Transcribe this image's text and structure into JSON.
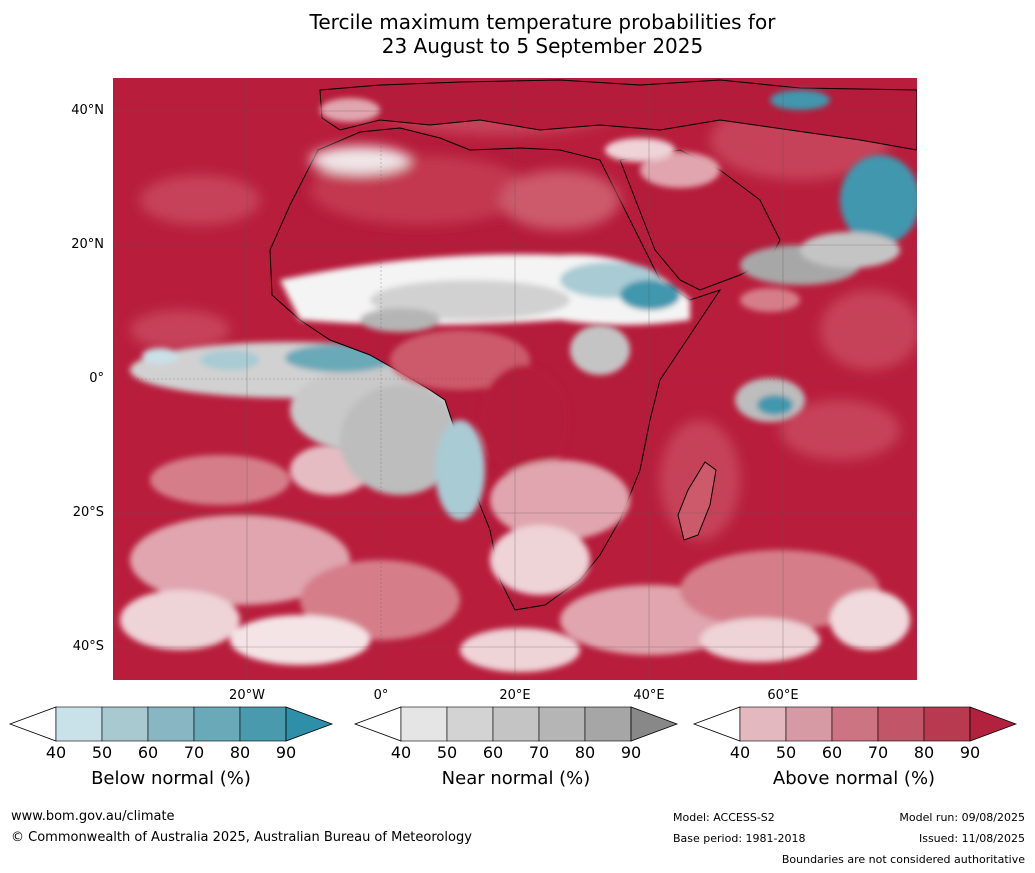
{
  "title": {
    "line1": "Tercile maximum temperature probabilities for",
    "line2": "23 August to 5 September 2025"
  },
  "map": {
    "lat_labels": [
      "40°N",
      "20°N",
      "0°",
      "20°S",
      "40°S"
    ],
    "lon_labels": [
      "20°W",
      "0°",
      "20°E",
      "40°E",
      "60°E"
    ],
    "colors": {
      "ocean_above": "#b81e3c",
      "above_90": "#b51b3a",
      "above_80": "#c3384f",
      "above_70": "#cc5a6b",
      "above_60": "#d57e8a",
      "above_50": "#e0a5ae",
      "near": "#a7a7a7",
      "near_light": "#d1d1d1",
      "below_light": "#a9cbd4",
      "below": "#4197ae",
      "coast": "#000000",
      "border": "#808080"
    }
  },
  "colorbars": [
    {
      "name": "below",
      "label": "Below normal (%)",
      "ticks": [
        "40",
        "50",
        "60",
        "70",
        "80",
        "90"
      ],
      "colors": [
        "#c9e1e8",
        "#a9c9d1",
        "#88b6c2",
        "#6aa9b8",
        "#4a9aae"
      ],
      "extend_color": "#2e8fa8"
    },
    {
      "name": "near",
      "label": "Near normal (%)",
      "ticks": [
        "40",
        "50",
        "60",
        "70",
        "80",
        "90"
      ],
      "colors": [
        "#e5e5e5",
        "#d3d3d3",
        "#c4c4c4",
        "#b5b5b5",
        "#a6a6a6"
      ],
      "extend_color": "#888888"
    },
    {
      "name": "above",
      "label": "Above normal (%)",
      "ticks": [
        "40",
        "50",
        "60",
        "70",
        "80",
        "90"
      ],
      "colors": [
        "#e3b8bf",
        "#d59aa3",
        "#cd7482",
        "#c25668",
        "#b73a50"
      ],
      "extend_color": "#b2213e"
    }
  ],
  "footer": {
    "url": "www.bom.gov.au/climate",
    "copyright": "© Commonwealth of Australia 2025, Australian Bureau of Meteorology",
    "model": "Model: ACCESS-S2",
    "base_period": "Base period: 1981-2018",
    "model_run": "Model run: 09/08/2025",
    "issued": "Issued: 11/08/2025",
    "disclaimer": "Boundaries are not considered authoritative"
  }
}
